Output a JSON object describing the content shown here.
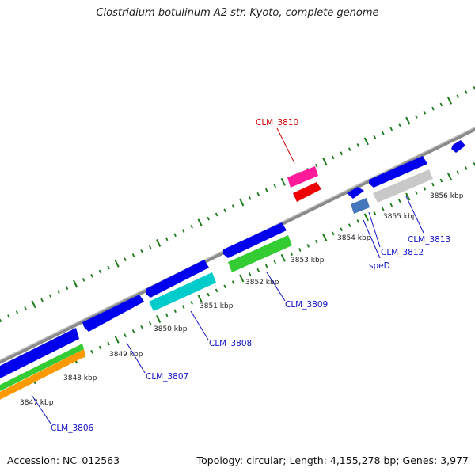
{
  "title": "Clostridium botulinum A2 str. Kyoto, complete genome",
  "footer": {
    "accession": "Accession: NC_012563",
    "info": "Topology: circular; Length: 4,155,278 bp; Genes: 3,977"
  },
  "colors": {
    "backbone": "#8a8a8a",
    "tick": "#1a7a1a",
    "label_link": "#1010c8",
    "label_highlight": "#d00000"
  },
  "kbp_labels": [
    "3847 kbp",
    "3848 kbp",
    "3849 kbp",
    "3850 kbp",
    "3851 kbp",
    "3852 kbp",
    "3853 kbp",
    "3854 kbp",
    "3855 kbp",
    "3856 kbp"
  ],
  "genes": [
    {
      "label": "CLM_3806",
      "color": "#0000ee"
    },
    {
      "label": "CLM_3807",
      "color": "#0000ee"
    },
    {
      "label": "CLM_3808",
      "color": "#0000ee"
    },
    {
      "label": "CLM_3809",
      "color": "#0000ee"
    },
    {
      "label": "CLM_3810",
      "color": "#ff1a9a"
    },
    {
      "label": "speD",
      "color": "#0000ee"
    },
    {
      "label": "CLM_3812",
      "color": "#0000ee"
    },
    {
      "label": "CLM_3813",
      "color": "#0000ee"
    }
  ],
  "feature_colors": [
    "#0000ee",
    "#33cc33",
    "#ff9900",
    "#00cccc",
    "#ff1a9a",
    "#ee0000",
    "#4477bb",
    "#c8c8c8"
  ]
}
